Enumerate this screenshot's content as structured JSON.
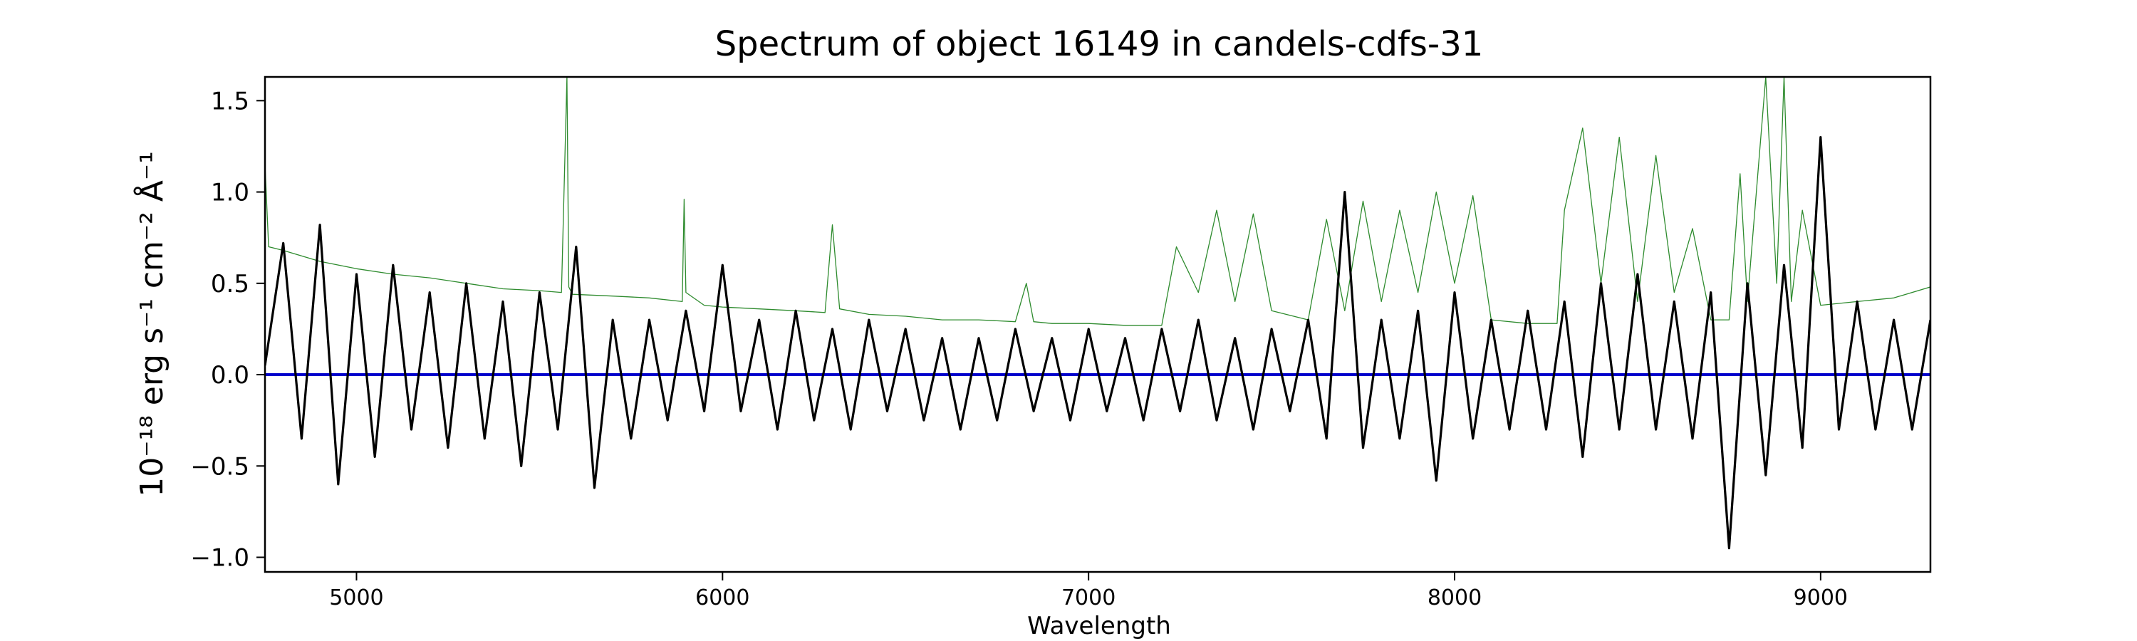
{
  "chart_data": {
    "type": "line",
    "title": "Spectrum of object 16149 in candels-cdfs-31",
    "xlabel": "Wavelength",
    "ylabel": "10⁻¹⁸ erg s⁻¹ cm⁻² Å⁻¹",
    "xlim": [
      4750,
      9300
    ],
    "ylim": [
      -1.08,
      1.63
    ],
    "xticks": [
      5000,
      6000,
      7000,
      8000,
      9000
    ],
    "xtick_labels": [
      "5000",
      "6000",
      "7000",
      "8000",
      "9000"
    ],
    "yticks": [
      -1.0,
      -0.5,
      0.0,
      0.5,
      1.0,
      1.5
    ],
    "ytick_labels": [
      "−1.0",
      "−0.5",
      "0.0",
      "0.5",
      "1.0",
      "1.5"
    ],
    "grid": false,
    "series": [
      {
        "role": "flux",
        "color": "#000000",
        "x": [
          4750,
          4800,
          4850,
          4900,
          4950,
          5000,
          5050,
          5100,
          5150,
          5200,
          5250,
          5300,
          5350,
          5400,
          5450,
          5500,
          5550,
          5600,
          5650,
          5700,
          5750,
          5800,
          5850,
          5900,
          5950,
          6000,
          6050,
          6100,
          6150,
          6200,
          6250,
          6300,
          6350,
          6400,
          6450,
          6500,
          6550,
          6600,
          6650,
          6700,
          6750,
          6800,
          6850,
          6900,
          6950,
          7000,
          7050,
          7100,
          7150,
          7200,
          7250,
          7300,
          7350,
          7400,
          7450,
          7500,
          7550,
          7600,
          7650,
          7700,
          7750,
          7800,
          7850,
          7900,
          7950,
          8000,
          8050,
          8100,
          8150,
          8200,
          8250,
          8300,
          8350,
          8400,
          8450,
          8500,
          8550,
          8600,
          8650,
          8700,
          8750,
          8800,
          8850,
          8900,
          8950,
          9000,
          9050,
          9100,
          9150,
          9200,
          9250,
          9300
        ],
        "y": [
          0.05,
          0.72,
          -0.35,
          0.82,
          -0.6,
          0.55,
          -0.45,
          0.6,
          -0.3,
          0.45,
          -0.4,
          0.5,
          -0.35,
          0.4,
          -0.5,
          0.45,
          -0.3,
          0.7,
          -0.62,
          0.3,
          -0.35,
          0.3,
          -0.25,
          0.35,
          -0.2,
          0.6,
          -0.2,
          0.3,
          -0.3,
          0.35,
          -0.25,
          0.25,
          -0.3,
          0.3,
          -0.2,
          0.25,
          -0.25,
          0.2,
          -0.3,
          0.2,
          -0.25,
          0.25,
          -0.2,
          0.2,
          -0.25,
          0.25,
          -0.2,
          0.2,
          -0.25,
          0.25,
          -0.2,
          0.3,
          -0.25,
          0.2,
          -0.3,
          0.25,
          -0.2,
          0.3,
          -0.35,
          1.0,
          -0.4,
          0.3,
          -0.35,
          0.35,
          -0.58,
          0.45,
          -0.35,
          0.3,
          -0.3,
          0.35,
          -0.3,
          0.4,
          -0.45,
          0.5,
          -0.3,
          0.55,
          -0.3,
          0.4,
          -0.35,
          0.45,
          -0.95,
          0.5,
          -0.55,
          0.6,
          -0.4,
          1.3,
          -0.3,
          0.4,
          -0.3,
          0.3,
          -0.3,
          0.3
        ]
      },
      {
        "role": "error",
        "color": "#2e8b2e",
        "x": [
          4750,
          4760,
          4800,
          4900,
          5000,
          5100,
          5200,
          5300,
          5400,
          5500,
          5560,
          5575,
          5580,
          5590,
          5700,
          5800,
          5890,
          5895,
          5900,
          5950,
          6000,
          6100,
          6200,
          6280,
          6300,
          6320,
          6400,
          6500,
          6600,
          6700,
          6800,
          6830,
          6850,
          6900,
          7000,
          7100,
          7200,
          7240,
          7300,
          7350,
          7400,
          7450,
          7500,
          7600,
          7650,
          7700,
          7750,
          7800,
          7850,
          7900,
          7950,
          8000,
          8050,
          8100,
          8200,
          8280,
          8300,
          8350,
          8400,
          8450,
          8500,
          8550,
          8600,
          8650,
          8700,
          8750,
          8780,
          8800,
          8850,
          8880,
          8900,
          8920,
          8950,
          9000,
          9100,
          9200,
          9300
        ],
        "y": [
          1.15,
          0.7,
          0.68,
          0.62,
          0.58,
          0.55,
          0.53,
          0.5,
          0.47,
          0.46,
          0.45,
          1.63,
          0.48,
          0.44,
          0.43,
          0.42,
          0.4,
          0.96,
          0.45,
          0.38,
          0.37,
          0.36,
          0.35,
          0.34,
          0.82,
          0.36,
          0.33,
          0.32,
          0.3,
          0.3,
          0.29,
          0.5,
          0.29,
          0.28,
          0.28,
          0.27,
          0.27,
          0.7,
          0.45,
          0.9,
          0.4,
          0.88,
          0.35,
          0.3,
          0.85,
          0.35,
          0.95,
          0.4,
          0.9,
          0.45,
          1.0,
          0.5,
          0.98,
          0.3,
          0.28,
          0.28,
          0.9,
          1.35,
          0.5,
          1.3,
          0.4,
          1.2,
          0.45,
          0.8,
          0.3,
          0.3,
          1.1,
          0.4,
          1.63,
          0.5,
          1.63,
          0.4,
          0.9,
          0.38,
          0.4,
          0.42,
          0.48
        ]
      },
      {
        "role": "model",
        "color": "#0000cc",
        "x": [
          4750,
          9300
        ],
        "y": [
          0.0,
          0.0
        ]
      }
    ]
  }
}
